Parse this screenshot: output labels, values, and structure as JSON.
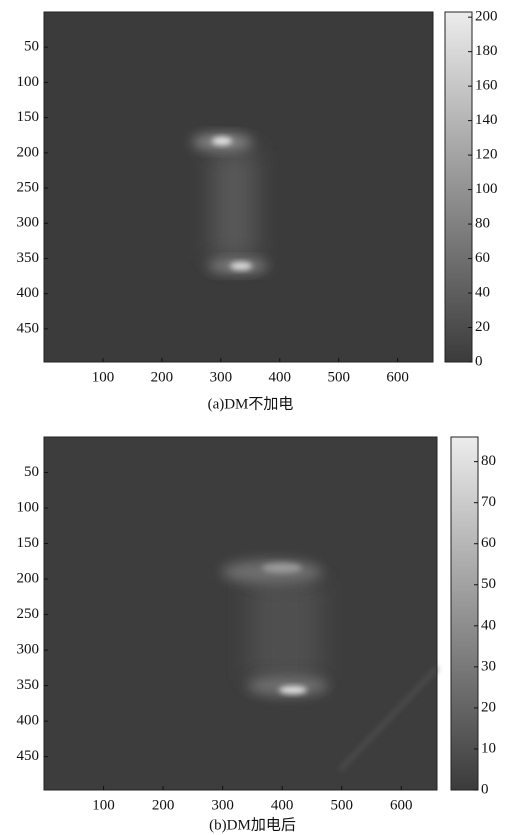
{
  "chart_data": [
    {
      "type": "heatmap",
      "caption": "(a)DM不加电",
      "colormap": "gray",
      "xlim": [
        0,
        660
      ],
      "xticks": [
        100,
        200,
        300,
        400,
        500,
        600
      ],
      "ylim": [
        0,
        497
      ],
      "yticks": [
        50,
        100,
        150,
        200,
        250,
        300,
        350,
        400,
        450
      ],
      "clim": [
        0,
        203
      ],
      "cticks": [
        0,
        20,
        40,
        60,
        80,
        100,
        120,
        140,
        160,
        180,
        200
      ]
    },
    {
      "type": "heatmap",
      "caption": "(b)DM加电后",
      "colormap": "gray",
      "xlim": [
        0,
        660
      ],
      "xticks": [
        100,
        200,
        300,
        400,
        500,
        600
      ],
      "ylim": [
        0,
        497
      ],
      "yticks": [
        50,
        100,
        150,
        200,
        250,
        300,
        350,
        400,
        450
      ],
      "clim": [
        0,
        86
      ],
      "cticks": [
        0,
        10,
        20,
        30,
        40,
        50,
        60,
        70,
        80
      ]
    }
  ]
}
